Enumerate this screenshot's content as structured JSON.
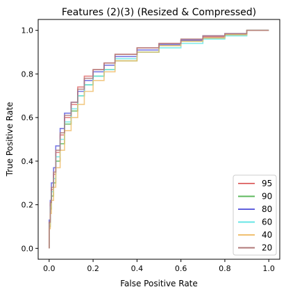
{
  "chart_data": {
    "type": "line",
    "title": "Features (2)(3) (Resized & Compressed)",
    "xlabel": "False Positive Rate",
    "ylabel": "True Positive Rate",
    "xlim": [
      -0.05,
      1.05
    ],
    "ylim": [
      -0.05,
      1.05
    ],
    "xticks": [
      "0.0",
      "0.2",
      "0.4",
      "0.6",
      "0.8",
      "1.0"
    ],
    "yticks": [
      "0.0",
      "0.2",
      "0.4",
      "0.6",
      "0.8",
      "1.0"
    ],
    "grid": false,
    "legend_position": "lower-right",
    "series": [
      {
        "name": "95",
        "color": "#e07070",
        "x": [
          0,
          0.005,
          0.01,
          0.02,
          0.03,
          0.05,
          0.07,
          0.1,
          0.13,
          0.16,
          0.2,
          0.25,
          0.3,
          0.4,
          0.5,
          0.6,
          0.7,
          0.8,
          0.9,
          1.0
        ],
        "y": [
          0,
          0.12,
          0.2,
          0.27,
          0.34,
          0.44,
          0.52,
          0.6,
          0.66,
          0.74,
          0.79,
          0.82,
          0.85,
          0.89,
          0.92,
          0.94,
          0.955,
          0.97,
          0.985,
          1.0
        ]
      },
      {
        "name": "90",
        "color": "#5cb85c",
        "x": [
          0,
          0.005,
          0.01,
          0.02,
          0.03,
          0.05,
          0.07,
          0.1,
          0.13,
          0.16,
          0.2,
          0.25,
          0.3,
          0.4,
          0.5,
          0.6,
          0.7,
          0.8,
          0.9,
          1.0
        ],
        "y": [
          0,
          0.1,
          0.18,
          0.24,
          0.3,
          0.4,
          0.48,
          0.57,
          0.63,
          0.7,
          0.75,
          0.79,
          0.82,
          0.86,
          0.9,
          0.93,
          0.95,
          0.965,
          0.98,
          1.0
        ]
      },
      {
        "name": "80",
        "color": "#6060dd",
        "x": [
          0,
          0.005,
          0.01,
          0.02,
          0.03,
          0.05,
          0.07,
          0.1,
          0.13,
          0.16,
          0.2,
          0.25,
          0.3,
          0.4,
          0.5,
          0.6,
          0.7,
          0.8,
          0.9,
          1.0
        ],
        "y": [
          0,
          0.13,
          0.22,
          0.3,
          0.37,
          0.47,
          0.55,
          0.62,
          0.67,
          0.72,
          0.77,
          0.81,
          0.84,
          0.88,
          0.91,
          0.935,
          0.955,
          0.975,
          0.985,
          1.0
        ]
      },
      {
        "name": "60",
        "color": "#66e6e6",
        "x": [
          0,
          0.005,
          0.01,
          0.02,
          0.03,
          0.05,
          0.07,
          0.1,
          0.13,
          0.16,
          0.2,
          0.25,
          0.3,
          0.4,
          0.5,
          0.6,
          0.7,
          0.8,
          0.9,
          1.0
        ],
        "y": [
          0,
          0.11,
          0.19,
          0.26,
          0.32,
          0.42,
          0.5,
          0.58,
          0.64,
          0.7,
          0.75,
          0.79,
          0.82,
          0.87,
          0.9,
          0.92,
          0.94,
          0.96,
          0.975,
          1.0
        ]
      },
      {
        "name": "40",
        "color": "#f0c070",
        "x": [
          0,
          0.005,
          0.01,
          0.02,
          0.03,
          0.05,
          0.07,
          0.1,
          0.13,
          0.16,
          0.2,
          0.25,
          0.3,
          0.4,
          0.5,
          0.6,
          0.7,
          0.8,
          0.9,
          1.0
        ],
        "y": [
          0,
          0.09,
          0.16,
          0.22,
          0.28,
          0.37,
          0.45,
          0.54,
          0.6,
          0.66,
          0.72,
          0.77,
          0.81,
          0.86,
          0.9,
          0.93,
          0.95,
          0.965,
          0.98,
          1.0
        ]
      },
      {
        "name": "20",
        "color": "#b07878",
        "x": [
          0,
          0.005,
          0.01,
          0.02,
          0.03,
          0.05,
          0.07,
          0.1,
          0.13,
          0.16,
          0.2,
          0.25,
          0.3,
          0.4,
          0.5,
          0.6,
          0.7,
          0.8,
          0.9,
          1.0
        ],
        "y": [
          0,
          0.12,
          0.21,
          0.28,
          0.35,
          0.45,
          0.53,
          0.61,
          0.67,
          0.73,
          0.78,
          0.82,
          0.85,
          0.89,
          0.92,
          0.94,
          0.96,
          0.975,
          0.985,
          1.0
        ]
      }
    ]
  }
}
